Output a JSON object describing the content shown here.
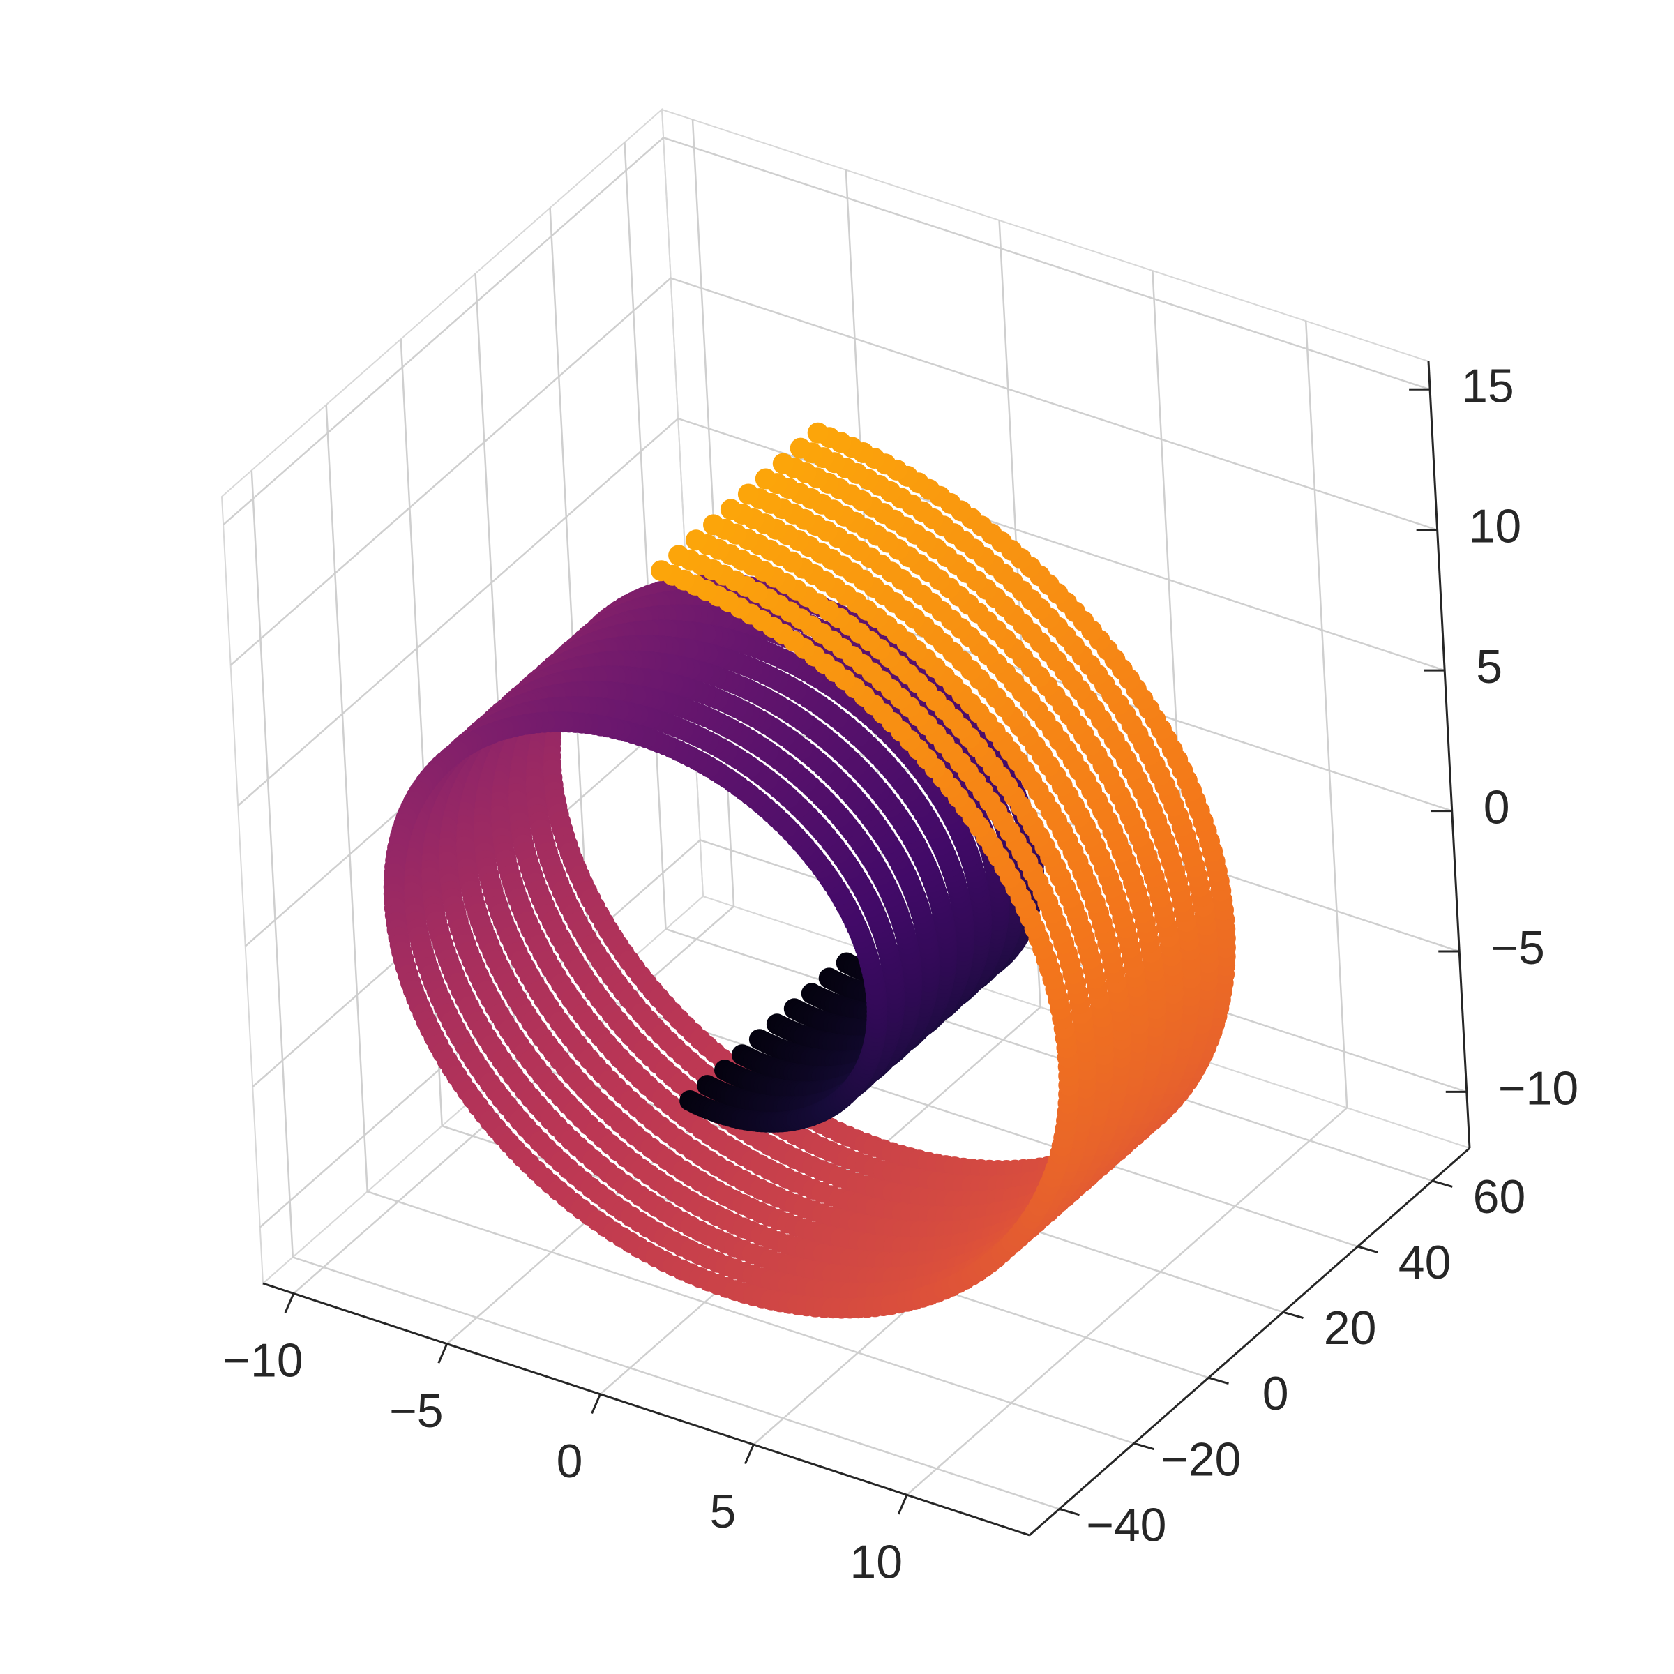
{
  "chart_data": {
    "type": "scatter",
    "subtype": "3d-swiss-roll",
    "title": "",
    "xlabel": "",
    "ylabel": "",
    "zlabel": "",
    "xlim": [
      -11,
      14
    ],
    "ylim": [
      -48,
      70
    ],
    "zlim": [
      -12,
      16
    ],
    "x_ticks": [
      -10,
      -5,
      0,
      5,
      10
    ],
    "y_ticks": [
      -40,
      -20,
      0,
      20,
      40,
      60
    ],
    "z_ticks": [
      -10,
      -5,
      0,
      5,
      10,
      15
    ],
    "x_tick_labels": [
      "−10",
      "−5",
      "0",
      "5",
      "10"
    ],
    "y_tick_labels": [
      "−40",
      "−20",
      "0",
      "20",
      "40",
      "60"
    ],
    "z_tick_labels": [
      "−10",
      "−5",
      "0",
      "5",
      "10",
      "15"
    ],
    "grid": true,
    "colormap": "inferno",
    "color_by": "roll parameter t",
    "roll": {
      "t_range": [
        4.71,
        14.14
      ],
      "x": "t·cos(t)",
      "z": "t·sin(t)",
      "y_range": [
        -21,
        21
      ]
    },
    "colors": {
      "pane_left": "#f5f5f5",
      "pane_back": "#efefef",
      "pane_floor": "#f3f3f3",
      "grid": "#cfcfcf",
      "axis": "#262626"
    }
  }
}
